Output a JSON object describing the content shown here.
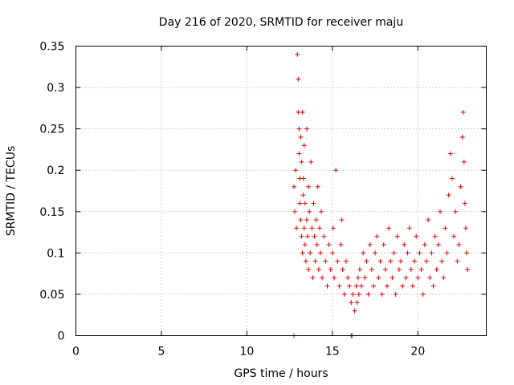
{
  "chart_data": {
    "type": "scatter",
    "title": "Day 216 of 2020, SRMTID for receiver maju",
    "xlabel": "GPS time / hours",
    "ylabel": "SRMTID / TECUs",
    "xlim": [
      0,
      24
    ],
    "ylim": [
      0,
      0.35
    ],
    "xticks": [
      0,
      5,
      10,
      15,
      20
    ],
    "xtick_labels": [
      "0",
      "5",
      "10",
      "15",
      "20"
    ],
    "yticks": [
      0,
      0.05,
      0.1,
      0.15,
      0.2,
      0.25,
      0.3,
      0.35
    ],
    "ytick_labels": [
      "0",
      "0.05",
      "0.1",
      "0.15",
      "0.2",
      "0.25",
      "0.3",
      "0.35"
    ],
    "grid": true,
    "marker": "+",
    "color": "#e00000",
    "series": [
      {
        "name": "SRMTID",
        "x": [
          12.75,
          12.8,
          12.85,
          12.9,
          12.95,
          13.0,
          13.0,
          13.05,
          13.05,
          13.1,
          13.1,
          13.15,
          13.15,
          13.2,
          13.2,
          13.25,
          13.25,
          13.3,
          13.3,
          13.35,
          13.35,
          13.4,
          13.4,
          13.45,
          13.5,
          13.5,
          13.55,
          13.6,
          13.6,
          13.65,
          13.7,
          13.75,
          13.8,
          13.85,
          13.9,
          13.95,
          14.0,
          14.05,
          14.1,
          14.15,
          14.2,
          14.25,
          14.3,
          14.35,
          14.4,
          14.5,
          14.6,
          14.7,
          14.8,
          14.9,
          15.0,
          15.05,
          15.1,
          15.2,
          15.3,
          15.4,
          15.5,
          15.55,
          15.6,
          15.7,
          15.8,
          15.9,
          16.0,
          16.1,
          16.2,
          16.3,
          16.4,
          16.45,
          16.5,
          16.55,
          16.6,
          16.7,
          16.8,
          16.9,
          17.0,
          17.1,
          17.2,
          17.3,
          17.4,
          17.5,
          17.6,
          17.7,
          17.8,
          17.9,
          18.0,
          18.1,
          18.2,
          18.3,
          18.4,
          18.5,
          18.6,
          18.7,
          18.8,
          18.9,
          19.0,
          19.1,
          19.2,
          19.3,
          19.4,
          19.5,
          19.6,
          19.7,
          19.8,
          19.9,
          20.0,
          20.1,
          20.2,
          20.3,
          20.4,
          20.5,
          20.6,
          20.7,
          20.8,
          20.9,
          21.0,
          21.1,
          21.2,
          21.3,
          21.4,
          21.5,
          21.6,
          21.7,
          21.8,
          21.9,
          22.0,
          22.1,
          22.2,
          22.3,
          22.4,
          22.5,
          22.6,
          22.65,
          22.7,
          22.75,
          22.8,
          22.85,
          22.9,
          12.75,
          16.1,
          16.15
        ],
        "y": [
          0.18,
          0.15,
          0.2,
          0.13,
          0.34,
          0.31,
          0.27,
          0.25,
          0.22,
          0.19,
          0.16,
          0.14,
          0.24,
          0.12,
          0.21,
          0.27,
          0.1,
          0.17,
          0.19,
          0.13,
          0.23,
          0.11,
          0.16,
          0.09,
          0.14,
          0.25,
          0.12,
          0.08,
          0.18,
          0.15,
          0.1,
          0.21,
          0.13,
          0.07,
          0.16,
          0.12,
          0.09,
          0.14,
          0.11,
          0.18,
          0.08,
          0.13,
          0.1,
          0.15,
          0.07,
          0.12,
          0.09,
          0.06,
          0.11,
          0.08,
          0.1,
          0.13,
          0.07,
          0.2,
          0.09,
          0.06,
          0.11,
          0.14,
          0.08,
          0.05,
          0.09,
          0.07,
          0.06,
          0.04,
          0.05,
          0.03,
          0.06,
          0.04,
          0.07,
          0.05,
          0.08,
          0.06,
          0.1,
          0.07,
          0.09,
          0.05,
          0.11,
          0.08,
          0.06,
          0.1,
          0.12,
          0.07,
          0.09,
          0.05,
          0.11,
          0.08,
          0.06,
          0.13,
          0.09,
          0.07,
          0.1,
          0.05,
          0.12,
          0.08,
          0.09,
          0.06,
          0.11,
          0.07,
          0.1,
          0.13,
          0.08,
          0.06,
          0.09,
          0.12,
          0.07,
          0.1,
          0.08,
          0.05,
          0.11,
          0.09,
          0.14,
          0.07,
          0.1,
          0.06,
          0.12,
          0.08,
          0.11,
          0.15,
          0.09,
          0.07,
          0.13,
          0.1,
          0.17,
          0.22,
          0.19,
          0.12,
          0.15,
          0.09,
          0.11,
          0.18,
          0.24,
          0.27,
          0.21,
          0.16,
          0.13,
          0.1,
          0.08,
          0.0,
          0.0,
          0.0
        ]
      }
    ]
  }
}
